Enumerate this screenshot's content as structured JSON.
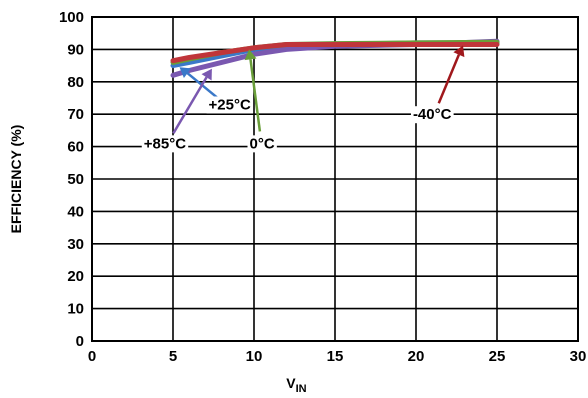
{
  "chart_data": {
    "type": "line",
    "title": "",
    "xlabel": "V",
    "xlabel_sub": "IN",
    "ylabel": "EFFICIENCY (%)",
    "xlim": [
      0,
      30
    ],
    "ylim": [
      0,
      100
    ],
    "x_ticks": [
      "0",
      "5",
      "10",
      "15",
      "20",
      "25",
      "30"
    ],
    "y_ticks": [
      "0",
      "10",
      "20",
      "30",
      "40",
      "50",
      "60",
      "70",
      "80",
      "90",
      "100"
    ],
    "grid": true,
    "series": [
      {
        "name": "+25°C",
        "color": "#3a78c8",
        "x": [
          5,
          6,
          8,
          10,
          12,
          15,
          20,
          25
        ],
        "y": [
          85,
          86,
          88,
          90,
          91,
          91.5,
          92,
          92
        ]
      },
      {
        "name": "+85°C",
        "color": "#7a58b0",
        "x": [
          5,
          6,
          8,
          10,
          12,
          15,
          20,
          25
        ],
        "y": [
          82,
          83.5,
          86,
          88.5,
          90,
          91,
          91.5,
          92.5
        ]
      },
      {
        "name": "0°C",
        "color": "#6a9e3a",
        "x": [
          5,
          6,
          8,
          10,
          12,
          15,
          20,
          25
        ],
        "y": [
          86,
          87,
          89,
          90.5,
          91.5,
          91.8,
          92,
          92.2
        ]
      },
      {
        "name": "-40°C",
        "color": "#c0353a",
        "x": [
          5,
          6,
          8,
          10,
          12,
          15,
          20,
          25
        ],
        "y": [
          86.5,
          87.5,
          89,
          90.5,
          91.5,
          91.5,
          91.5,
          91.5
        ]
      }
    ],
    "annotations": [
      {
        "label": "+25°C",
        "series": "+25°C",
        "color": "#3a78c8",
        "text_x": 8.5,
        "text_y": 73,
        "arrow_x": 5.4,
        "arrow_y": 84.5
      },
      {
        "label": "+85°C",
        "series": "+85°C",
        "color": "#7a58b0",
        "text_x": 4.5,
        "text_y": 61,
        "arrow_x": 7.4,
        "arrow_y": 84
      },
      {
        "label": "0°C",
        "series": "0°C",
        "color": "#6a9e3a",
        "text_x": 10.5,
        "text_y": 61,
        "arrow_x": 9.7,
        "arrow_y": 90
      },
      {
        "label": "-40°C",
        "series": "-40°C",
        "color": "#a0181c",
        "text_x": 21,
        "text_y": 70,
        "arrow_x": 22.9,
        "arrow_y": 91.2
      }
    ]
  }
}
